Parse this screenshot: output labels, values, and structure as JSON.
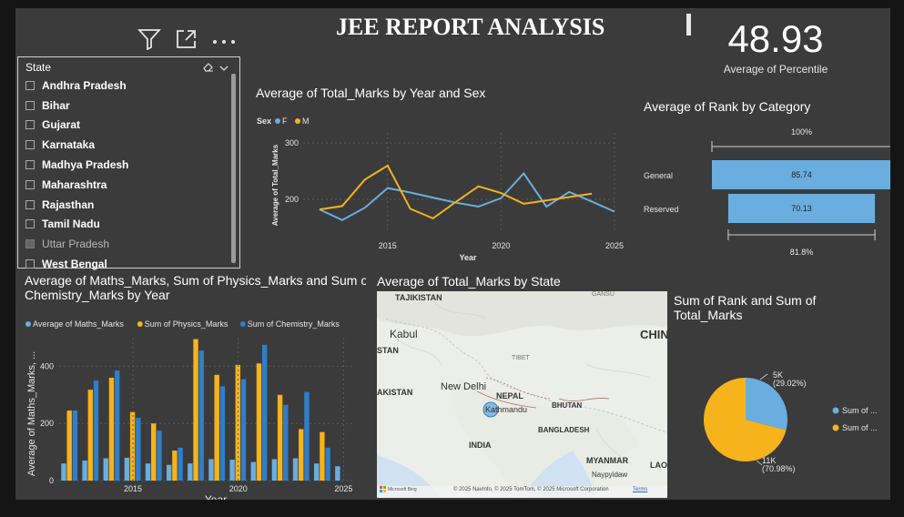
{
  "page": {
    "title": "JEE REPORT ANALYSIS",
    "kpi": {
      "value": "48.93",
      "label": "Average of Percentile"
    }
  },
  "toolbar": {
    "icons": [
      "filter-icon",
      "focus-mode-icon",
      "more-options-icon"
    ]
  },
  "slicer": {
    "header": "State",
    "items": [
      {
        "label": "Andhra Pradesh",
        "enabled": true
      },
      {
        "label": "Bihar",
        "enabled": true
      },
      {
        "label": "Gujarat",
        "enabled": true
      },
      {
        "label": "Karnataka",
        "enabled": true
      },
      {
        "label": "Madhya Pradesh",
        "enabled": true
      },
      {
        "label": "Maharashtra",
        "enabled": true
      },
      {
        "label": "Rajasthan",
        "enabled": true
      },
      {
        "label": "Tamil Nadu",
        "enabled": true
      },
      {
        "label": "Uttar Pradesh",
        "enabled": false
      },
      {
        "label": "West Bengal",
        "enabled": true
      }
    ]
  },
  "map": {
    "title": "Average of Total_Marks by State",
    "labels": [
      "TAJIKISTAN",
      "Kabul",
      "STAN",
      "AKISTAN",
      "New Delhi",
      "NEPAL",
      "Kathmandu",
      "BHUTAN",
      "BANGLADESH",
      "INDIA",
      "MYANMAR",
      "Naypyidaw",
      "TIBET",
      "GANSU",
      "CHIN",
      "LAO"
    ],
    "attribution": "© 2025 NavInfo, © 2025 TomTom, © 2025 Microsoft Corporation",
    "terms": "Terms",
    "logo": "Microsoft Bing"
  },
  "colors": {
    "f": "#6aaee0",
    "m": "#f6b31b",
    "maths": "#6aaee0",
    "physics": "#f6b31b",
    "chemistry": "#2f7ec8",
    "bar_category": "#6aaee0"
  },
  "chart_data": [
    {
      "id": "line",
      "type": "line",
      "title": "Average of Total_Marks by Year and Sex",
      "legend_title": "Sex",
      "xlabel": "Year",
      "ylabel": "Average of Total_Marks",
      "x": [
        2012,
        2013,
        2014,
        2015,
        2016,
        2017,
        2018,
        2019,
        2020,
        2021,
        2022,
        2023,
        2024,
        2025
      ],
      "xticks": [
        "2015",
        "2020",
        "2025"
      ],
      "yticks": [
        "200",
        "300"
      ],
      "ylim": [
        140,
        310
      ],
      "series": [
        {
          "name": "F",
          "values": [
            182,
            163,
            185,
            220,
            212,
            203,
            194,
            187,
            202,
            246,
            187,
            213,
            196,
            178
          ]
        },
        {
          "name": "M",
          "values": [
            182,
            188,
            235,
            260,
            183,
            166,
            195,
            223,
            211,
            192,
            198,
            204,
            210,
            null
          ]
        }
      ]
    },
    {
      "id": "bar",
      "type": "bar",
      "title": "Average of Maths_Marks, Sum of Physics_Marks and Sum of Chemistry_Marks by Year",
      "xlabel": "Year",
      "ylabel": "Average of Maths_Marks, ...",
      "categories": [
        "2012",
        "2013",
        "2014",
        "2015",
        "2016",
        "2017",
        "2018",
        "2019",
        "2020",
        "2021",
        "2022",
        "2023",
        "2024",
        "2025"
      ],
      "xticks": [
        "2015",
        "2020",
        "2025"
      ],
      "yticks": [
        "0",
        "200",
        "400"
      ],
      "ylim": [
        0,
        500
      ],
      "series": [
        {
          "name": "Average of Maths_Marks",
          "values": [
            60,
            70,
            78,
            80,
            60,
            55,
            60,
            75,
            73,
            65,
            75,
            78,
            60,
            50
          ]
        },
        {
          "name": "Sum of Physics_Marks",
          "values": [
            245,
            318,
            360,
            240,
            200,
            105,
            495,
            370,
            405,
            410,
            300,
            180,
            170,
            null
          ]
        },
        {
          "name": "Sum of Chemistry_Marks",
          "values": [
            245,
            350,
            385,
            220,
            175,
            115,
            455,
            330,
            355,
            475,
            265,
            310,
            115,
            null
          ]
        }
      ]
    },
    {
      "id": "hbar",
      "type": "bar",
      "title": "Average of Rank by Category",
      "categories": [
        "General",
        "Reserved"
      ],
      "values": [
        85.74,
        70.13
      ],
      "top_label": "100%",
      "bottom_label": "81.8%"
    },
    {
      "id": "pie",
      "type": "pie",
      "title": "Sum of Rank and Sum of Total_Marks",
      "slices": [
        {
          "name": "Sum of ...",
          "value": 29.02,
          "label": "5K",
          "pct": "(29.02%)"
        },
        {
          "name": "Sum of ...",
          "value": 70.98,
          "label": "11K",
          "pct": "(70.98%)"
        }
      ]
    }
  ]
}
